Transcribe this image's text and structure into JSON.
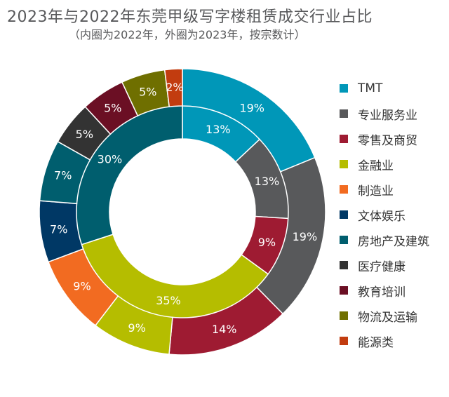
{
  "title": "2023年与2022年东莞甲级写字楼租赁成交行业占比",
  "subtitle": "（内圈为2022年，外圈为2023年，按宗数计）",
  "chart_data": {
    "type": "pie",
    "subtype": "nested-donut",
    "categories": [
      "TMT",
      "专业服务业",
      "零售及商贸",
      "金融业",
      "制造业",
      "文体娱乐",
      "房地产及建筑",
      "医疗健康",
      "教育培训",
      "物流及运输",
      "能源类"
    ],
    "colors": [
      "#0097b8",
      "#58595b",
      "#9e1b32",
      "#b5bd00",
      "#f26b21",
      "#003865",
      "#005e6e",
      "#333333",
      "#6b0f24",
      "#6f6f00",
      "#c23c0f"
    ],
    "series": [
      {
        "name": "2022年",
        "ring": "inner",
        "values": [
          13,
          13,
          9,
          35,
          null,
          null,
          30,
          null,
          null,
          null,
          null
        ],
        "labels": [
          "13%",
          "13%",
          "9%",
          "35%",
          "",
          "",
          "30%",
          "",
          "",
          "",
          ""
        ]
      },
      {
        "name": "2023年",
        "ring": "outer",
        "values": [
          19,
          19,
          14,
          9,
          9,
          7,
          7,
          5,
          5,
          5,
          2
        ],
        "labels": [
          "19%",
          "19%",
          "14%",
          "9%",
          "9%",
          "7%",
          "7%",
          "5%",
          "5%",
          "5%",
          "2%"
        ]
      }
    ],
    "legend_position": "right"
  }
}
